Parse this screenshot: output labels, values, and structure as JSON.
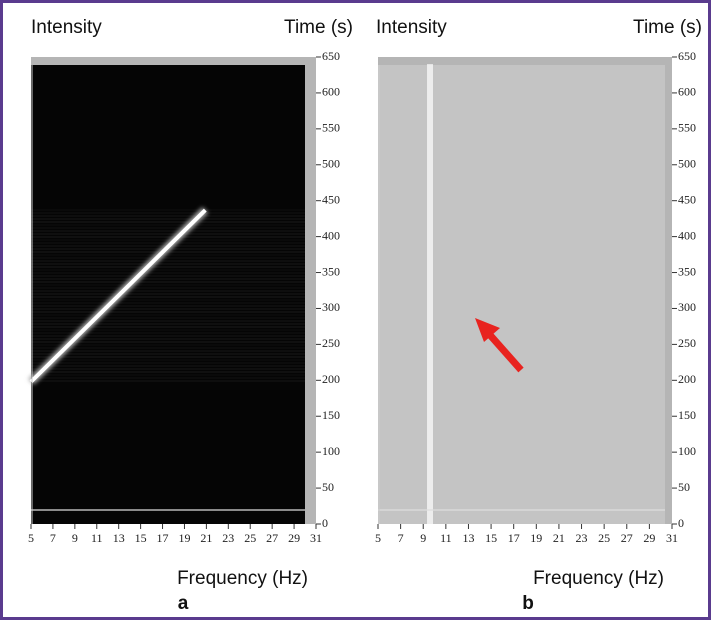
{
  "chart_data": [
    {
      "type": "spectrogram",
      "panel_label": "a",
      "z_label": "Intensity",
      "y_label": "Time (s)",
      "x_label": "Frequency (Hz)",
      "xlim": [
        5,
        31
      ],
      "xticks": [
        5,
        7,
        9,
        11,
        13,
        15,
        17,
        19,
        21,
        23,
        25,
        27,
        29,
        31
      ],
      "ylim": [
        0,
        650
      ],
      "yticks": [
        0,
        50,
        100,
        150,
        200,
        250,
        300,
        350,
        400,
        450,
        500,
        550,
        600,
        650
      ],
      "trace": {
        "x": [
          5,
          20.9
        ],
        "y": [
          198,
          437
        ]
      }
    },
    {
      "type": "spectrogram",
      "panel_label": "b",
      "z_label": "Intensity",
      "y_label": "Time (s)",
      "x_label": "Frequency (Hz)",
      "xlim": [
        5,
        31
      ],
      "xticks": [
        5,
        7,
        9,
        11,
        13,
        15,
        17,
        19,
        21,
        23,
        25,
        27,
        29,
        31
      ],
      "ylim": [
        0,
        650
      ],
      "yticks": [
        0,
        50,
        100,
        150,
        200,
        250,
        300,
        350,
        400,
        450,
        500,
        550,
        600,
        650
      ],
      "trace": {
        "x": [
          9.6,
          9.6
        ],
        "y": [
          0,
          640
        ]
      }
    }
  ]
}
